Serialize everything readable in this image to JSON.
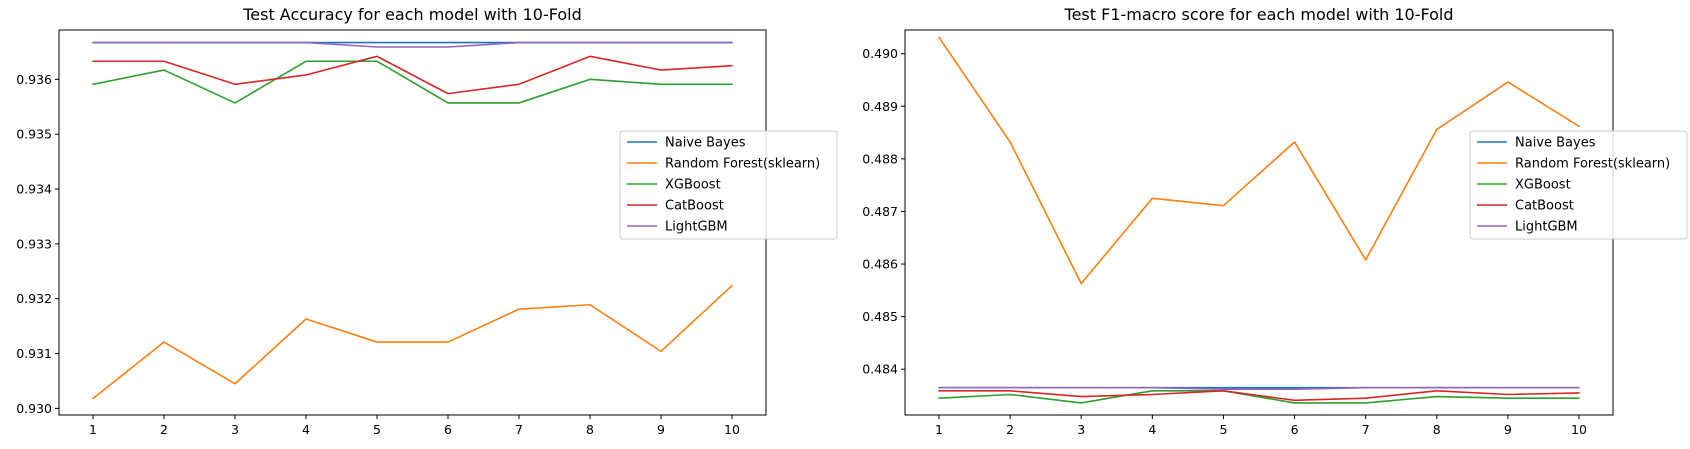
{
  "colors": {
    "Naive Bayes": "#1f77b4",
    "Random Forest(sklearn)": "#ff7f0e",
    "XGBoost": "#2ca02c",
    "CatBoost": "#d62728",
    "LightGBM": "#9467bd"
  },
  "chart_data": [
    {
      "type": "line",
      "title": "Test Accuracy for each model with 10-Fold",
      "xlabel": "",
      "ylabel": "",
      "x": [
        1,
        2,
        3,
        4,
        5,
        6,
        7,
        8,
        9,
        10
      ],
      "ylim": [
        0.92988,
        0.9369
      ],
      "yticks": [
        0.93,
        0.931,
        0.932,
        0.933,
        0.934,
        0.935,
        0.936
      ],
      "ytick_labels": [
        "0.930",
        "0.931",
        "0.932",
        "0.933",
        "0.934",
        "0.935",
        "0.936"
      ],
      "legend_position": "center-right",
      "series": [
        {
          "name": "Naive Bayes",
          "values": [
            0.93667,
            0.93667,
            0.93667,
            0.93667,
            0.93667,
            0.93667,
            0.93667,
            0.93667,
            0.93667,
            0.93667
          ]
        },
        {
          "name": "Random Forest(sklearn)",
          "values": [
            0.93018,
            0.93121,
            0.93045,
            0.93163,
            0.93121,
            0.93121,
            0.93181,
            0.93189,
            0.93104,
            0.93224
          ]
        },
        {
          "name": "XGBoost",
          "values": [
            0.93591,
            0.93617,
            0.93557,
            0.93633,
            0.93633,
            0.93557,
            0.93557,
            0.936,
            0.93591,
            0.93591
          ]
        },
        {
          "name": "CatBoost",
          "values": [
            0.93633,
            0.93633,
            0.93591,
            0.93608,
            0.93642,
            0.93574,
            0.93591,
            0.93642,
            0.93617,
            0.93625
          ]
        },
        {
          "name": "LightGBM",
          "values": [
            0.93667,
            0.93667,
            0.93667,
            0.93667,
            0.93659,
            0.93659,
            0.93667,
            0.93667,
            0.93667,
            0.93667
          ]
        }
      ]
    },
    {
      "type": "line",
      "title": "Test F1-macro score for each model with 10-Fold",
      "xlabel": "",
      "ylabel": "",
      "x": [
        1,
        2,
        3,
        4,
        5,
        6,
        7,
        8,
        9,
        10
      ],
      "ylim": [
        0.48313,
        0.49045
      ],
      "yticks": [
        0.484,
        0.485,
        0.486,
        0.487,
        0.488,
        0.489,
        0.49
      ],
      "ytick_labels": [
        "0.484",
        "0.485",
        "0.486",
        "0.487",
        "0.488",
        "0.489",
        "0.490"
      ],
      "legend_position": "center-right",
      "series": [
        {
          "name": "Naive Bayes",
          "values": [
            0.48365,
            0.48365,
            0.48365,
            0.48365,
            0.48365,
            0.48365,
            0.48365,
            0.48365,
            0.48365,
            0.48365
          ]
        },
        {
          "name": "Random Forest(sklearn)",
          "values": [
            0.49031,
            0.48832,
            0.48563,
            0.48725,
            0.48711,
            0.48832,
            0.48608,
            0.48856,
            0.48946,
            0.48862
          ]
        },
        {
          "name": "XGBoost",
          "values": [
            0.48345,
            0.48352,
            0.48336,
            0.48359,
            0.48359,
            0.48336,
            0.48336,
            0.48348,
            0.48345,
            0.48345
          ]
        },
        {
          "name": "CatBoost",
          "values": [
            0.48359,
            0.48359,
            0.48348,
            0.48352,
            0.48359,
            0.48341,
            0.48345,
            0.48359,
            0.48352,
            0.48355
          ]
        },
        {
          "name": "LightGBM",
          "values": [
            0.48365,
            0.48365,
            0.48365,
            0.48365,
            0.48362,
            0.48362,
            0.48365,
            0.48365,
            0.48365,
            0.48365
          ]
        }
      ]
    }
  ]
}
